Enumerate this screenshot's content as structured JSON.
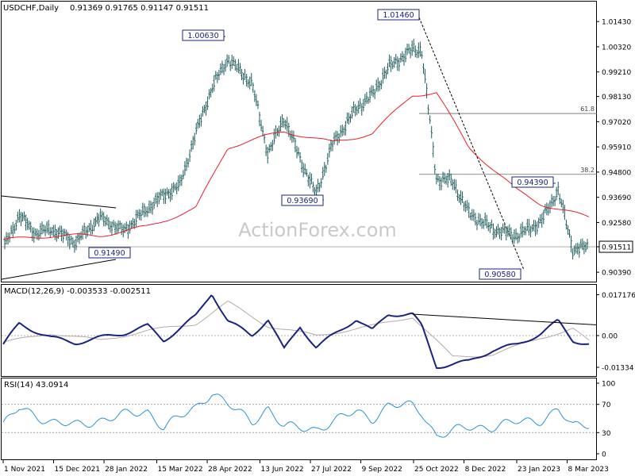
{
  "header": {
    "symbol": "USDCHF,Daily",
    "ohlc": "0.91369 0.91765 0.91147 0.91511"
  },
  "watermark": "ActionForex.com",
  "colors": {
    "candle": "#1f5c5c",
    "ma": "#e8202a",
    "macd": "#1a237e",
    "signal": "#b8a8a8",
    "rsi": "#2a93d5",
    "trendline": "#000000",
    "border": "#000000"
  },
  "chart_data": [
    {
      "type": "candlestick",
      "title": "USDCHF,Daily",
      "ylim": [
        0.9008,
        1.0168
      ],
      "y_ticks": [
        "1.01430",
        "1.00320",
        "0.99210",
        "0.98130",
        "0.97020",
        "0.95910",
        "0.94800",
        "0.93690",
        "0.92580",
        "0.91511",
        "0.90390"
      ],
      "y_tick_values": [
        1.0143,
        1.0032,
        0.9921,
        0.9813,
        0.9702,
        0.9591,
        0.948,
        0.9369,
        0.9258,
        0.91511,
        0.9039
      ],
      "current_price": 0.91511,
      "price_labels": [
        {
          "text": "1.00630",
          "value": 1.0063,
          "date": "2022-04-28"
        },
        {
          "text": "1.01460",
          "value": 1.0146,
          "date": "2022-11-01"
        },
        {
          "text": "0.93690",
          "value": 0.9369,
          "date": "2022-08-01"
        },
        {
          "text": "0.94390",
          "value": 0.9439,
          "date": "2023-02-28"
        },
        {
          "text": "0.90580",
          "value": 0.9058,
          "date": "2023-03-20"
        },
        {
          "text": "0.91490",
          "value": 0.9149,
          "date": "2022-01-07"
        }
      ],
      "fib_levels": [
        {
          "label": "61.8",
          "value": 0.9738
        },
        {
          "label": "38.2",
          "value": 0.947
        }
      ],
      "series": [
        {
          "name": "close",
          "points": [
            [
              "2021-11-01",
              0.914
            ],
            [
              "2021-11-15",
              0.929
            ],
            [
              "2021-11-29",
              0.921
            ],
            [
              "2021-12-13",
              0.923
            ],
            [
              "2022-01-03",
              0.917
            ],
            [
              "2022-01-24",
              0.928
            ],
            [
              "2022-02-14",
              0.922
            ],
            [
              "2022-03-07",
              0.932
            ],
            [
              "2022-03-21",
              0.938
            ],
            [
              "2022-04-04",
              0.942
            ],
            [
              "2022-04-18",
              0.965
            ],
            [
              "2022-05-02",
              0.985
            ],
            [
              "2022-05-16",
              0.998
            ],
            [
              "2022-06-06",
              0.987
            ],
            [
              "2022-06-20",
              0.956
            ],
            [
              "2022-07-04",
              0.972
            ],
            [
              "2022-07-18",
              0.954
            ],
            [
              "2022-08-01",
              0.938
            ],
            [
              "2022-08-15",
              0.96
            ],
            [
              "2022-09-05",
              0.976
            ],
            [
              "2022-09-19",
              0.982
            ],
            [
              "2022-10-03",
              0.994
            ],
            [
              "2022-10-24",
              1.002
            ],
            [
              "2022-11-01",
              1.002
            ],
            [
              "2022-11-14",
              0.945
            ],
            [
              "2022-11-28",
              0.944
            ],
            [
              "2022-12-12",
              0.93
            ],
            [
              "2023-01-02",
              0.923
            ],
            [
              "2023-01-23",
              0.92
            ],
            [
              "2023-02-13",
              0.926
            ],
            [
              "2023-02-28",
              0.94
            ],
            [
              "2023-03-13",
              0.914
            ],
            [
              "2023-03-27",
              0.9151
            ]
          ]
        },
        {
          "name": "MA",
          "points": [
            [
              "2021-11-01",
              0.918
            ],
            [
              "2021-12-13",
              0.92
            ],
            [
              "2022-01-24",
              0.92
            ],
            [
              "2022-03-07",
              0.924
            ],
            [
              "2022-04-18",
              0.932
            ],
            [
              "2022-05-16",
              0.959
            ],
            [
              "2022-06-06",
              0.962
            ],
            [
              "2022-07-04",
              0.966
            ],
            [
              "2022-08-15",
              0.961
            ],
            [
              "2022-09-19",
              0.965
            ],
            [
              "2022-10-24",
              0.982
            ],
            [
              "2022-11-14",
              0.983
            ],
            [
              "2022-12-12",
              0.959
            ],
            [
              "2023-01-23",
              0.94
            ],
            [
              "2023-02-13",
              0.934
            ],
            [
              "2023-03-27",
              0.928
            ]
          ]
        }
      ]
    },
    {
      "type": "line",
      "title": "MACD(12,26,9) -0.003533 -0.002511",
      "ylim": [
        -0.016,
        0.02
      ],
      "y_ticks": [
        "0.017176",
        "0.00",
        "-0.01334"
      ],
      "series": [
        {
          "name": "MACD",
          "points": [
            [
              "2021-11-01",
              -0.004
            ],
            [
              "2021-11-15",
              0.005
            ],
            [
              "2021-12-13",
              -0.001
            ],
            [
              "2022-01-03",
              -0.003
            ],
            [
              "2022-02-14",
              0.001
            ],
            [
              "2022-03-07",
              0.004
            ],
            [
              "2022-03-21",
              -0.002
            ],
            [
              "2022-04-18",
              0.008
            ],
            [
              "2022-05-02",
              0.018
            ],
            [
              "2022-05-16",
              0.006
            ],
            [
              "2022-06-06",
              0.0
            ],
            [
              "2022-06-20",
              0.007
            ],
            [
              "2022-07-04",
              -0.006
            ],
            [
              "2022-07-18",
              0.004
            ],
            [
              "2022-08-01",
              -0.005
            ],
            [
              "2022-09-05",
              0.007
            ],
            [
              "2022-09-19",
              0.002
            ],
            [
              "2022-10-03",
              0.009
            ],
            [
              "2022-10-24",
              0.009
            ],
            [
              "2022-11-01",
              0.004
            ],
            [
              "2022-11-14",
              -0.013
            ],
            [
              "2022-12-12",
              -0.011
            ],
            [
              "2023-01-02",
              -0.006
            ],
            [
              "2023-01-23",
              -0.004
            ],
            [
              "2023-02-13",
              0.001
            ],
            [
              "2023-02-28",
              0.006
            ],
            [
              "2023-03-13",
              -0.002
            ],
            [
              "2023-03-27",
              -0.0035
            ]
          ]
        },
        {
          "name": "Signal",
          "points": [
            [
              "2021-11-01",
              -0.003
            ],
            [
              "2021-12-13",
              0.001
            ],
            [
              "2022-01-24",
              -0.002
            ],
            [
              "2022-03-07",
              0.002
            ],
            [
              "2022-04-18",
              0.005
            ],
            [
              "2022-05-16",
              0.014
            ],
            [
              "2022-06-20",
              0.004
            ],
            [
              "2022-08-01",
              0.0
            ],
            [
              "2022-09-19",
              0.004
            ],
            [
              "2022-10-24",
              0.008
            ],
            [
              "2022-11-28",
              -0.009
            ],
            [
              "2023-01-02",
              -0.008
            ],
            [
              "2023-02-13",
              -0.001
            ],
            [
              "2023-03-13",
              0.003
            ],
            [
              "2023-03-27",
              -0.0025
            ]
          ]
        }
      ],
      "trendline": [
        [
          "2022-10-24",
          0.009
        ],
        [
          "2023-03-27",
          0.0045
        ]
      ]
    },
    {
      "type": "line",
      "title": "RSI(14) 43.0914",
      "ylim": [
        0,
        100
      ],
      "y_ticks": [
        "100",
        "70",
        "30",
        "0"
      ],
      "series": [
        {
          "name": "RSI",
          "points": [
            [
              "2021-11-01",
              40
            ],
            [
              "2021-11-15",
              65
            ],
            [
              "2021-12-13",
              45
            ],
            [
              "2022-01-03",
              40
            ],
            [
              "2022-02-14",
              55
            ],
            [
              "2022-03-07",
              60
            ],
            [
              "2022-03-21",
              38
            ],
            [
              "2022-04-18",
              65
            ],
            [
              "2022-05-02",
              88
            ],
            [
              "2022-05-16",
              70
            ],
            [
              "2022-06-06",
              45
            ],
            [
              "2022-06-20",
              65
            ],
            [
              "2022-07-04",
              38
            ],
            [
              "2022-08-01",
              35
            ],
            [
              "2022-09-05",
              60
            ],
            [
              "2022-09-19",
              50
            ],
            [
              "2022-10-03",
              68
            ],
            [
              "2022-10-24",
              68
            ],
            [
              "2022-11-01",
              60
            ],
            [
              "2022-11-14",
              25
            ],
            [
              "2022-12-12",
              38
            ],
            [
              "2023-01-02",
              38
            ],
            [
              "2023-01-23",
              45
            ],
            [
              "2023-02-13",
              48
            ],
            [
              "2023-02-28",
              62
            ],
            [
              "2023-03-13",
              38
            ],
            [
              "2023-03-27",
              43
            ]
          ]
        }
      ]
    }
  ],
  "x_axis": {
    "labels": [
      {
        "text": "1 Nov 2021",
        "date": "2021-11-01"
      },
      {
        "text": "15 Dec 2021",
        "date": "2021-12-15"
      },
      {
        "text": "28 Jan 2022",
        "date": "2022-01-28"
      },
      {
        "text": "15 Mar 2022",
        "date": "2022-03-15"
      },
      {
        "text": "28 Apr 2022",
        "date": "2022-04-28"
      },
      {
        "text": "13 Jun 2022",
        "date": "2022-06-13"
      },
      {
        "text": "27 Jul 2022",
        "date": "2022-07-27"
      },
      {
        "text": "9 Sep 2022",
        "date": "2022-09-09"
      },
      {
        "text": "25 Oct 2022",
        "date": "2022-10-25"
      },
      {
        "text": "8 Dec 2022",
        "date": "2022-12-08"
      },
      {
        "text": "23 Jan 2023",
        "date": "2023-01-23"
      },
      {
        "text": "8 Mar 2023",
        "date": "2023-03-08"
      }
    ]
  }
}
